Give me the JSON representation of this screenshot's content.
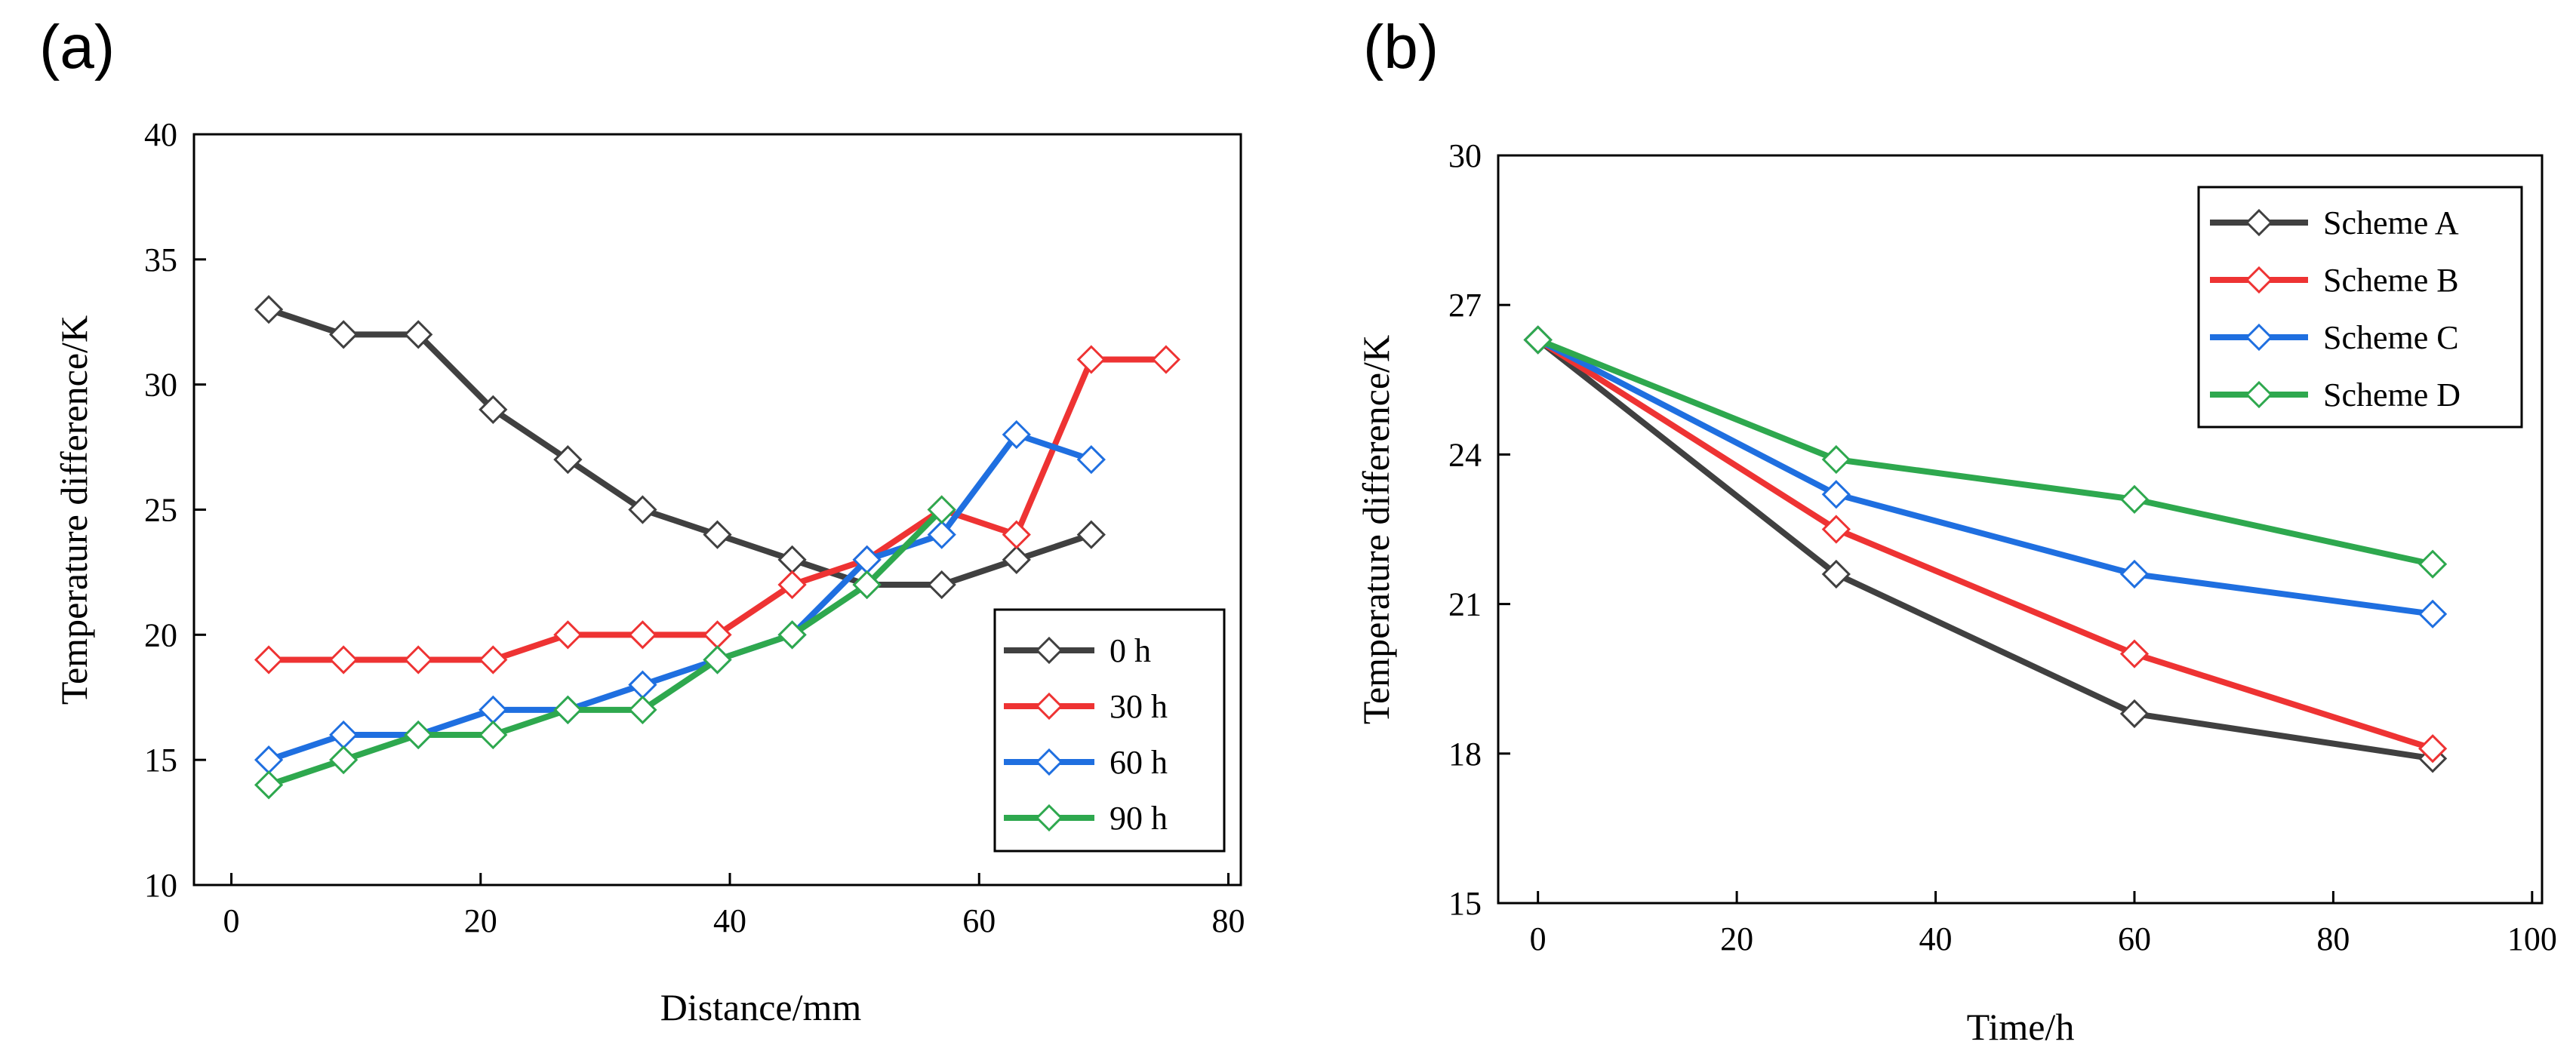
{
  "chart_data": [
    {
      "type": "line",
      "panel_label": "(a)",
      "xlabel": "Distance/mm",
      "ylabel": "Temperature difference/K",
      "xlim": [
        -3,
        81
      ],
      "ylim": [
        10,
        40
      ],
      "xticks": [
        0,
        20,
        40,
        60,
        80
      ],
      "yticks": [
        10,
        15,
        20,
        25,
        30,
        35,
        40
      ],
      "legend_position": "bottom-right",
      "series": [
        {
          "name": "0 h",
          "color": "#404040",
          "x": [
            3,
            9,
            15,
            21,
            27,
            33,
            39,
            45,
            51,
            57,
            63,
            69
          ],
          "y": [
            33,
            32,
            32,
            29,
            27,
            25,
            24,
            23,
            22,
            22,
            23,
            24
          ]
        },
        {
          "name": "30 h",
          "color": "#ee3333",
          "x": [
            3,
            9,
            15,
            21,
            27,
            33,
            39,
            45,
            51,
            57,
            63,
            69,
            75
          ],
          "y": [
            19,
            19,
            19,
            19,
            20,
            20,
            20,
            22,
            23,
            25,
            24,
            31,
            31
          ]
        },
        {
          "name": "60 h",
          "color": "#1f6fe0",
          "x": [
            3,
            9,
            15,
            21,
            27,
            33,
            39,
            45,
            51,
            57,
            63,
            69
          ],
          "y": [
            15,
            16,
            16,
            17,
            17,
            18,
            19,
            20,
            23,
            24,
            28,
            27
          ]
        },
        {
          "name": "90 h",
          "color": "#2ea84e",
          "x": [
            3,
            9,
            15,
            21,
            27,
            33,
            39,
            45,
            51,
            57
          ],
          "y": [
            14,
            15,
            16,
            16,
            17,
            17,
            19,
            20,
            22,
            25
          ]
        }
      ]
    },
    {
      "type": "line",
      "panel_label": "(b)",
      "xlabel": "Time/h",
      "ylabel": "Temperature difference/K",
      "xlim": [
        -4,
        101
      ],
      "ylim": [
        15,
        30
      ],
      "xticks": [
        0,
        20,
        40,
        60,
        80,
        100
      ],
      "yticks": [
        15,
        18,
        21,
        24,
        27,
        30
      ],
      "legend_position": "top-right",
      "series": [
        {
          "name": "Scheme A",
          "color": "#404040",
          "x": [
            0,
            30,
            60,
            90
          ],
          "y": [
            26.3,
            21.6,
            18.8,
            17.9
          ]
        },
        {
          "name": "Scheme B",
          "color": "#ee3333",
          "x": [
            0,
            30,
            60,
            90
          ],
          "y": [
            26.3,
            22.5,
            20.0,
            18.1
          ]
        },
        {
          "name": "Scheme C",
          "color": "#1f6fe0",
          "x": [
            0,
            30,
            60,
            90
          ],
          "y": [
            26.3,
            23.2,
            21.6,
            20.8
          ]
        },
        {
          "name": "Scheme D",
          "color": "#2ea84e",
          "x": [
            0,
            30,
            60,
            90
          ],
          "y": [
            26.3,
            23.9,
            23.1,
            21.8
          ]
        }
      ]
    }
  ]
}
